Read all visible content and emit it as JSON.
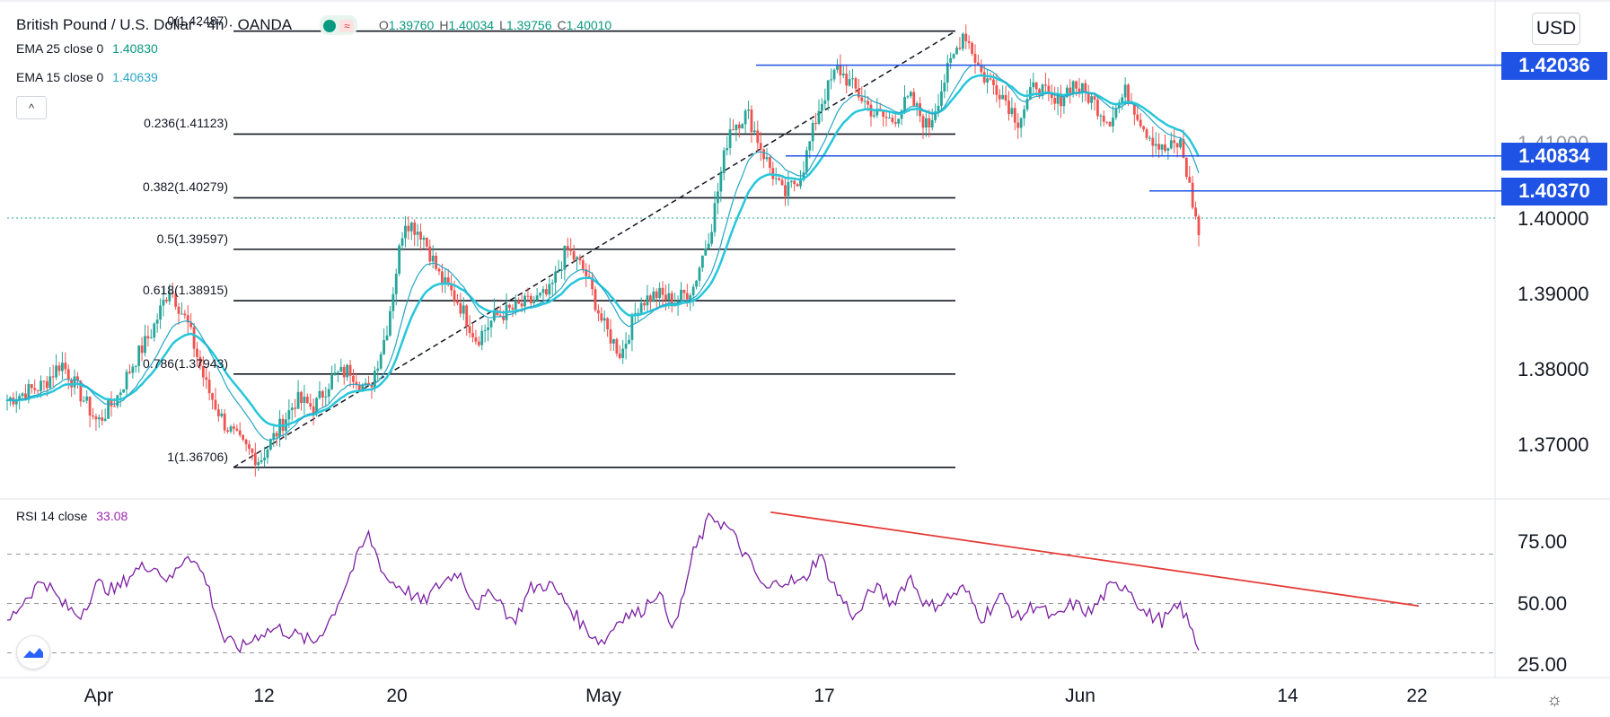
{
  "header": {
    "symbol": "British Pound / U.S. Dollar",
    "interval": "4h",
    "source": "OANDA",
    "ohlc": [
      {
        "label": "O",
        "value": "1.39760"
      },
      {
        "label": "H",
        "value": "1.40034"
      },
      {
        "label": "L",
        "value": "1.39756"
      },
      {
        "label": "C",
        "value": "1.40010"
      }
    ]
  },
  "indicators": {
    "ema25": {
      "label": "EMA 25 close 0",
      "value": "1.40830"
    },
    "ema15": {
      "label": "EMA 15 close 0",
      "value": "1.40639"
    },
    "collapse_glyph": "^"
  },
  "rsi_legend": {
    "label": "RSI 14 close",
    "value": "33.08"
  },
  "currency_button": "USD",
  "fib_levels": [
    {
      "ratio": 0,
      "label": "0(1.42487)",
      "price": 1.42487
    },
    {
      "ratio": 0.236,
      "label": "0.236(1.41123)",
      "price": 1.41123
    },
    {
      "ratio": 0.382,
      "label": "0.382(1.40279)",
      "price": 1.40279
    },
    {
      "ratio": 0.5,
      "label": "0.5(1.39597)",
      "price": 1.39597
    },
    {
      "ratio": 0.618,
      "label": "0.618(1.38915)",
      "price": 1.38915
    },
    {
      "ratio": 0.786,
      "label": "0.786(1.37943)",
      "price": 1.37943
    },
    {
      "ratio": 1,
      "label": "1(1.36706)",
      "price": 1.36706
    }
  ],
  "price_axis": {
    "ticks": [
      "1.40000",
      "1.39000",
      "1.38000",
      "1.37000"
    ],
    "top_partial": "1.41000",
    "highlighted": [
      "1.42036",
      "1.40834",
      "1.40370"
    ]
  },
  "rsi_axis": {
    "ticks": [
      "75.00",
      "50.00",
      "25.00"
    ]
  },
  "time_axis": {
    "ticks": [
      "Apr",
      "12",
      "20",
      "May",
      "17",
      "Jun",
      "14",
      "22"
    ]
  },
  "colors": {
    "accent": "#1e53e5",
    "ema25": "#26c6da",
    "ema15": "#26a6c6",
    "up_candle": "#26a69a",
    "down_candle": "#ef5350",
    "rsi": "#7b1fa2",
    "trendline": "#e53935",
    "level_line": "#1e53e5"
  },
  "chart_data": {
    "type": "candlestick",
    "title": "British Pound / U.S. Dollar",
    "x_ticks": [
      "Apr",
      "12",
      "20",
      "May",
      "17",
      "Jun",
      "14",
      "22"
    ],
    "y_ticks": [
      1.37,
      1.38,
      1.39,
      1.4
    ],
    "ylim": [
      1.363,
      1.429
    ],
    "last_close": 1.4001,
    "horizontal_levels": [
      1.42036,
      1.40834,
      1.4037
    ],
    "fib_retracement": {
      "from": 1.36706,
      "to": 1.42487
    },
    "waypoints": [
      1.376,
      1.377,
      1.378,
      1.381,
      1.377,
      1.373,
      1.376,
      1.381,
      1.385,
      1.391,
      1.386,
      1.378,
      1.373,
      1.37,
      1.368,
      1.372,
      1.376,
      1.375,
      1.379,
      1.38,
      1.377,
      1.385,
      1.4,
      1.398,
      1.392,
      1.389,
      1.384,
      1.387,
      1.388,
      1.389,
      1.39,
      1.396,
      1.393,
      1.386,
      1.382,
      1.389,
      1.39,
      1.389,
      1.391,
      1.399,
      1.412,
      1.414,
      1.408,
      1.403,
      1.406,
      1.415,
      1.42,
      1.417,
      1.414,
      1.413,
      1.416,
      1.412,
      1.419,
      1.425,
      1.419,
      1.417,
      1.413,
      1.418,
      1.415,
      1.418,
      1.416,
      1.413,
      1.417,
      1.412,
      1.409,
      1.41,
      1.398
    ],
    "rsi": {
      "period": 14,
      "last": 33.08,
      "levels": [
        70,
        50,
        30
      ],
      "ylim": [
        20,
        92
      ],
      "trendline": [
        {
          "index": 0.505,
          "value": 87
        },
        {
          "index": 0.968,
          "value": 49
        }
      ],
      "waypoints": [
        42,
        52,
        60,
        50,
        45,
        58,
        55,
        63,
        66,
        59,
        71,
        60,
        35,
        32,
        38,
        40,
        37,
        34,
        45,
        62,
        78,
        60,
        56,
        50,
        58,
        63,
        49,
        55,
        42,
        56,
        58,
        50,
        40,
        34,
        45,
        46,
        55,
        40,
        70,
        86,
        80,
        68,
        55,
        60,
        58,
        70,
        54,
        44,
        57,
        50,
        61,
        48,
        52,
        56,
        44,
        53,
        44,
        50,
        43,
        50,
        46,
        56,
        58,
        46,
        43,
        49,
        32
      ]
    }
  }
}
